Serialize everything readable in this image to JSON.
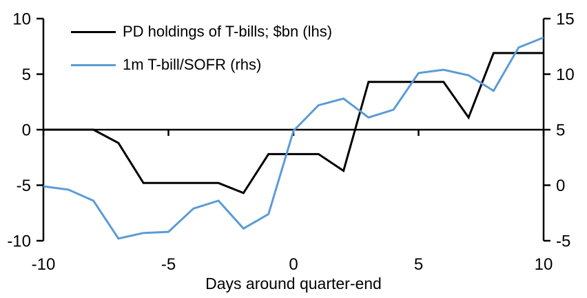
{
  "chart_data": {
    "type": "line",
    "x": [
      -10,
      -9,
      -8,
      -7,
      -6,
      -5,
      -4,
      -3,
      -2,
      -1,
      0,
      1,
      2,
      3,
      4,
      5,
      6,
      7,
      8,
      9,
      10
    ],
    "series": [
      {
        "name": "PD holdings of T-bills; $bn (lhs)",
        "axis": "left",
        "color": "#000000",
        "values": [
          0,
          0,
          0,
          -1.2,
          -4.8,
          -4.8,
          -4.8,
          -4.8,
          -5.7,
          -2.2,
          -2.2,
          -2.2,
          -3.7,
          4.3,
          4.3,
          4.3,
          4.3,
          1.1,
          6.9,
          6.9,
          6.9
        ]
      },
      {
        "name": "1m T-bill/SOFR (rhs)",
        "axis": "right",
        "color": "#5B9BD5",
        "values": [
          -0.1,
          -0.4,
          -1.4,
          -4.8,
          -4.3,
          -4.2,
          -2.1,
          -1.4,
          -3.9,
          -2.6,
          4.9,
          7.2,
          7.8,
          6.1,
          6.8,
          10.1,
          10.4,
          9.9,
          8.5,
          12.4,
          13.3
        ]
      }
    ],
    "xlabel": "Days around quarter-end",
    "left_axis": {
      "min": -10,
      "max": 10,
      "ticks": [
        -10,
        -5,
        0,
        5,
        10
      ]
    },
    "right_axis": {
      "min": -5,
      "max": 15,
      "ticks": [
        -5,
        0,
        5,
        10,
        15
      ]
    },
    "x_ticks": [
      -10,
      -5,
      0,
      5,
      10
    ],
    "grid": false,
    "legend_position": "top-left",
    "axis_color": "#000000"
  }
}
